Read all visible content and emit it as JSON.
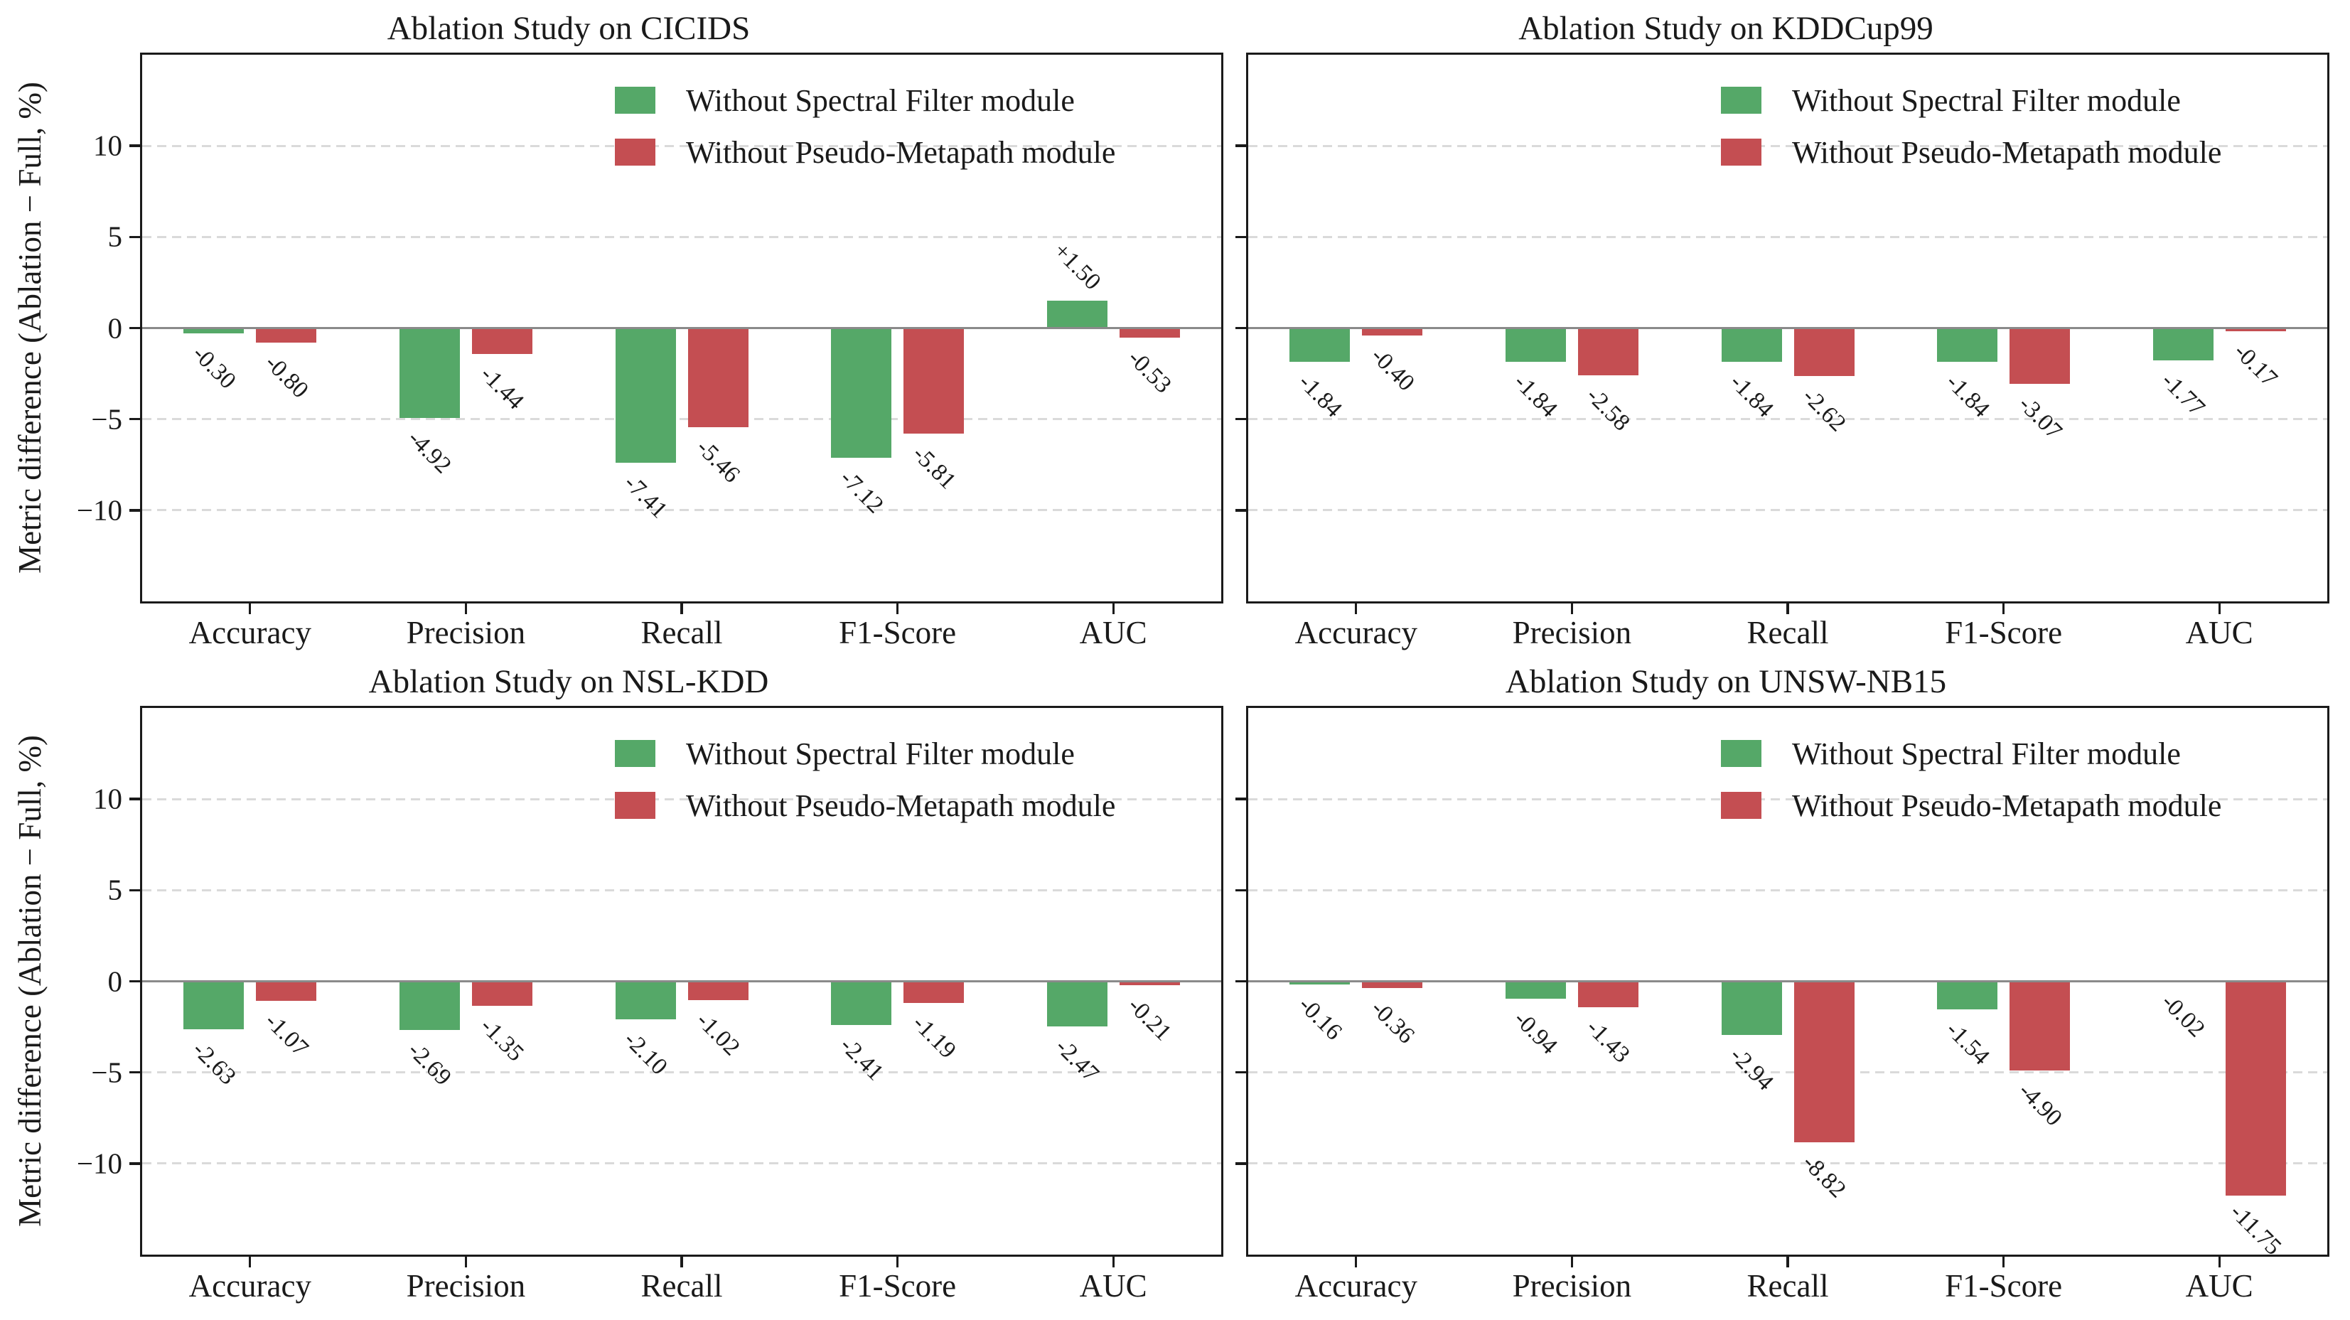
{
  "figure": {
    "background": "#ffffff",
    "axis_color": "#1a1a1a",
    "grid_color": "#dadada",
    "zero_line_color": "#8a8a8a"
  },
  "chart_data": [
    {
      "type": "bar",
      "title": "Ablation Study on CICIDS",
      "grid_position": {
        "row": 0,
        "col": 0
      },
      "categories": [
        "Accuracy",
        "Precision",
        "Recall",
        "F1-Score",
        "AUC"
      ],
      "series": [
        {
          "name": "Without Spectral Filter module",
          "color": "#55a868",
          "values": [
            -0.3,
            -4.92,
            -7.41,
            -7.12,
            1.5
          ]
        },
        {
          "name": "Without Pseudo-Metapath module",
          "color": "#c44e52",
          "values": [
            -0.8,
            -1.44,
            -5.46,
            -5.81,
            -0.53
          ]
        }
      ],
      "ylabel": "Metric difference (Ablation − Full, %)",
      "show_ylabel": true,
      "show_y_tick_labels": true,
      "ylim": [
        -15,
        15
      ],
      "yticks": [
        10,
        5,
        0,
        -5,
        -10
      ],
      "grid": "horizontal dashed",
      "legend_position": "upper right",
      "value_label_rotation": -45
    },
    {
      "type": "bar",
      "title": "Ablation Study on KDDCup99",
      "grid_position": {
        "row": 0,
        "col": 1
      },
      "categories": [
        "Accuracy",
        "Precision",
        "Recall",
        "F1-Score",
        "AUC"
      ],
      "series": [
        {
          "name": "Without Spectral Filter module",
          "color": "#55a868",
          "values": [
            -1.84,
            -1.84,
            -1.84,
            -1.84,
            -1.77
          ]
        },
        {
          "name": "Without Pseudo-Metapath module",
          "color": "#c44e52",
          "values": [
            -0.4,
            -2.58,
            -2.62,
            -3.07,
            -0.17
          ]
        }
      ],
      "ylabel": "",
      "show_ylabel": false,
      "show_y_tick_labels": false,
      "ylim": [
        -15,
        15
      ],
      "yticks": [
        10,
        5,
        0,
        -5,
        -10
      ],
      "grid": "horizontal dashed",
      "legend_position": "upper right",
      "value_label_rotation": -45
    },
    {
      "type": "bar",
      "title": "Ablation Study on NSL-KDD",
      "grid_position": {
        "row": 1,
        "col": 0
      },
      "categories": [
        "Accuracy",
        "Precision",
        "Recall",
        "F1-Score",
        "AUC"
      ],
      "series": [
        {
          "name": "Without Spectral Filter module",
          "color": "#55a868",
          "values": [
            -2.63,
            -2.69,
            -2.1,
            -2.41,
            -2.47
          ]
        },
        {
          "name": "Without Pseudo-Metapath module",
          "color": "#c44e52",
          "values": [
            -1.07,
            -1.35,
            -1.02,
            -1.19,
            -0.21
          ]
        }
      ],
      "ylabel": "Metric difference (Ablation − Full, %)",
      "show_ylabel": true,
      "show_y_tick_labels": true,
      "ylim": [
        -15,
        15
      ],
      "yticks": [
        10,
        5,
        0,
        -5,
        -10
      ],
      "grid": "horizontal dashed",
      "legend_position": "upper right",
      "value_label_rotation": -45
    },
    {
      "type": "bar",
      "title": "Ablation Study on UNSW-NB15",
      "grid_position": {
        "row": 1,
        "col": 1
      },
      "categories": [
        "Accuracy",
        "Precision",
        "Recall",
        "F1-Score",
        "AUC"
      ],
      "series": [
        {
          "name": "Without Spectral Filter module",
          "color": "#55a868",
          "values": [
            -0.16,
            -0.94,
            -2.94,
            -1.54,
            -0.02
          ]
        },
        {
          "name": "Without Pseudo-Metapath module",
          "color": "#c44e52",
          "values": [
            -0.36,
            -1.43,
            -8.82,
            -4.9,
            -11.75
          ]
        }
      ],
      "ylabel": "",
      "show_ylabel": false,
      "show_y_tick_labels": false,
      "ylim": [
        -15,
        15
      ],
      "yticks": [
        10,
        5,
        0,
        -5,
        -10
      ],
      "grid": "horizontal dashed",
      "legend_position": "upper right",
      "value_label_rotation": -45
    }
  ]
}
